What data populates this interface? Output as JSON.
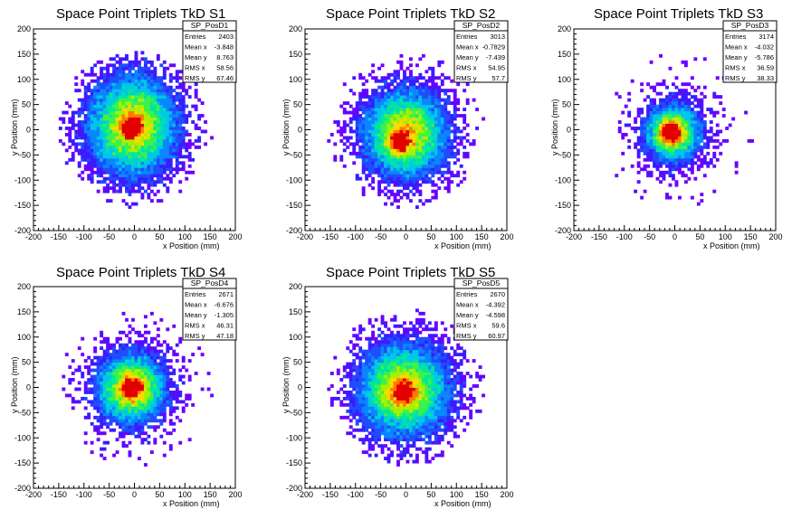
{
  "chart_data": [
    {
      "type": "heatmap",
      "title": "Space Point Triplets TkD S1",
      "xlabel": "x Position (mm)",
      "ylabel": "y Position (mm)",
      "xlim": [
        -200,
        200
      ],
      "ylim": [
        -200,
        200
      ],
      "xticks": [
        "-200",
        "-150",
        "-100",
        "-50",
        "0",
        "50",
        "100",
        "150",
        "200"
      ],
      "yticks": [
        "-200",
        "-150",
        "-100",
        "-50",
        "0",
        "50",
        "100",
        "150",
        "200"
      ],
      "stats": {
        "name": "SP_PosD1",
        "rows": [
          {
            "label": "Entries",
            "value": "2403"
          },
          {
            "label": "Mean x",
            "value": "-3.848"
          },
          {
            "label": "Mean y",
            "value": "8.763"
          },
          {
            "label": "RMS x",
            "value": "58.56"
          },
          {
            "label": "RMS y",
            "value": "67.46"
          }
        ]
      },
      "mean_x": -3.848,
      "mean_y": 8.763,
      "rms_x": 58.56,
      "rms_y": 67.46,
      "peak_x": -5,
      "peak_y": 5,
      "radius": 150
    },
    {
      "type": "heatmap",
      "title": "Space Point Triplets TkD S2",
      "xlabel": "x Position (mm)",
      "ylabel": "y Position (mm)",
      "xlim": [
        -200,
        200
      ],
      "ylim": [
        -200,
        200
      ],
      "xticks": [
        "-200",
        "-150",
        "-100",
        "-50",
        "0",
        "50",
        "100",
        "150",
        "200"
      ],
      "yticks": [
        "-200",
        "-150",
        "-100",
        "-50",
        "0",
        "50",
        "100",
        "150",
        "200"
      ],
      "stats": {
        "name": "SP_PosD2",
        "rows": [
          {
            "label": "Entries",
            "value": "3013"
          },
          {
            "label": "Mean x",
            "value": "-0.7829"
          },
          {
            "label": "Mean y",
            "value": "-7.439"
          },
          {
            "label": "RMS x",
            "value": "54.95"
          },
          {
            "label": "RMS y",
            "value": "57.7"
          }
        ]
      },
      "mean_x": -0.7829,
      "mean_y": -7.439,
      "rms_x": 54.95,
      "rms_y": 57.7,
      "peak_x": -15,
      "peak_y": -25,
      "radius": 150
    },
    {
      "type": "heatmap",
      "title": "Space Point Triplets TkD S3",
      "xlabel": "x Position (mm)",
      "ylabel": "y Position (mm)",
      "xlim": [
        -200,
        200
      ],
      "ylim": [
        -200,
        200
      ],
      "xticks": [
        "-200",
        "-150",
        "-100",
        "-50",
        "0",
        "50",
        "100",
        "150",
        "200"
      ],
      "yticks": [
        "-200",
        "-150",
        "-100",
        "-50",
        "0",
        "50",
        "100",
        "150",
        "200"
      ],
      "stats": {
        "name": "SP_PosD3",
        "rows": [
          {
            "label": "Entries",
            "value": "3174"
          },
          {
            "label": "Mean x",
            "value": "-4.032"
          },
          {
            "label": "Mean y",
            "value": "-5.786"
          },
          {
            "label": "RMS x",
            "value": "36.59"
          },
          {
            "label": "RMS y",
            "value": "38.33"
          }
        ]
      },
      "mean_x": -4.032,
      "mean_y": -5.786,
      "rms_x": 36.59,
      "rms_y": 38.33,
      "peak_x": -10,
      "peak_y": -5,
      "radius": 150
    },
    {
      "type": "heatmap",
      "title": "Space Point Triplets TkD S4",
      "xlabel": "x Position (mm)",
      "ylabel": "y Position (mm)",
      "xlim": [
        -200,
        200
      ],
      "ylim": [
        -200,
        200
      ],
      "xticks": [
        "-200",
        "-150",
        "-100",
        "-50",
        "0",
        "50",
        "100",
        "150",
        "200"
      ],
      "yticks": [
        "-200",
        "-150",
        "-100",
        "-50",
        "0",
        "50",
        "100",
        "150",
        "200"
      ],
      "stats": {
        "name": "SP_PosD4",
        "rows": [
          {
            "label": "Entries",
            "value": "2671"
          },
          {
            "label": "Mean x",
            "value": "-6.676"
          },
          {
            "label": "Mean y",
            "value": "-1.305"
          },
          {
            "label": "RMS x",
            "value": "46.31"
          },
          {
            "label": "RMS y",
            "value": "47.18"
          }
        ]
      },
      "mean_x": -6.676,
      "mean_y": -1.305,
      "rms_x": 46.31,
      "rms_y": 47.18,
      "peak_x": -5,
      "peak_y": 0,
      "radius": 150
    },
    {
      "type": "heatmap",
      "title": "Space Point Triplets TkD S5",
      "xlabel": "x Position (mm)",
      "ylabel": "y Position (mm)",
      "xlim": [
        -200,
        200
      ],
      "ylim": [
        -200,
        200
      ],
      "xticks": [
        "-200",
        "-150",
        "-100",
        "-50",
        "0",
        "50",
        "100",
        "150",
        "200"
      ],
      "yticks": [
        "-200",
        "-150",
        "-100",
        "-50",
        "0",
        "50",
        "100",
        "150",
        "200"
      ],
      "stats": {
        "name": "SP_PosD5",
        "rows": [
          {
            "label": "Entries",
            "value": "2670"
          },
          {
            "label": "Mean x",
            "value": "-4.392"
          },
          {
            "label": "Mean y",
            "value": "-4.598"
          },
          {
            "label": "RMS x",
            "value": "59.6"
          },
          {
            "label": "RMS y",
            "value": "60.97"
          }
        ]
      },
      "mean_x": -4.392,
      "mean_y": -4.598,
      "rms_x": 59.6,
      "rms_y": 60.97,
      "peak_x": -5,
      "peak_y": -10,
      "radius": 150
    }
  ],
  "colors": {
    "palette": [
      "#6a00ff",
      "#3a1cff",
      "#1f4dff",
      "#0a86ff",
      "#00c6e8",
      "#00e5a0",
      "#3cf24a",
      "#a8f000",
      "#ffd800",
      "#ff7a00",
      "#e00000"
    ],
    "axis": "#000000",
    "background": "#ffffff"
  }
}
